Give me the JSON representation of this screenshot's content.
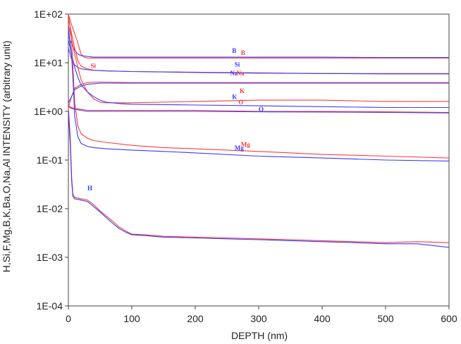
{
  "chart_data": {
    "type": "line",
    "xlabel": "DEPTH (nm)",
    "ylabel": "H,Si,F,Mg,B,K,Ba,O,Na,Al INTENSITY (arbitrary unit)",
    "xlim": [
      0,
      600
    ],
    "ylim": [
      0.0001,
      100
    ],
    "y_scale": "log",
    "grid": false,
    "x_ticks": [
      "0",
      "100",
      "200",
      "300",
      "400",
      "500",
      "600"
    ],
    "y_ticks": [
      "1E+02",
      "1E+01",
      "1E+00",
      "1E-01",
      "1E-02",
      "1E-03",
      "1E-04"
    ],
    "colors": {
      "red": "#ff3b3b",
      "blue": "#3a3aff"
    },
    "labels": [
      {
        "text": "B",
        "color": "blue",
        "x": 258,
        "y": 16
      },
      {
        "text": "B",
        "color": "red",
        "x": 272,
        "y": 14.5
      },
      {
        "text": "Si",
        "color": "red",
        "x": 35,
        "y": 7.8
      },
      {
        "text": "Si",
        "color": "blue",
        "x": 262,
        "y": 8.3
      },
      {
        "text": "Na",
        "color": "blue",
        "x": 255,
        "y": 5.5
      },
      {
        "text": "Na",
        "color": "red",
        "x": 265,
        "y": 5.5
      },
      {
        "text": "K",
        "color": "red",
        "x": 270,
        "y": 2.4
      },
      {
        "text": "K",
        "color": "blue",
        "x": 258,
        "y": 1.8
      },
      {
        "text": "O",
        "color": "red",
        "x": 268,
        "y": 1.4
      },
      {
        "text": "O",
        "color": "blue",
        "x": 300,
        "y": 1.0
      },
      {
        "text": "Mg",
        "color": "red",
        "x": 272,
        "y": 0.19
      },
      {
        "text": "Mg",
        "color": "blue",
        "x": 262,
        "y": 0.16
      },
      {
        "text": "H",
        "color": "blue",
        "x": 30,
        "y": 0.024
      }
    ],
    "series": [
      {
        "color": "red",
        "x": [
          0,
          5,
          10,
          15,
          20,
          25,
          30,
          40,
          60,
          100,
          200,
          300,
          400,
          500,
          600
        ],
        "y": [
          100,
          60,
          40,
          25,
          15,
          13,
          12.5,
          12.5,
          12.5,
          12.5,
          12.5,
          12.5,
          12.5,
          12.5,
          12.5
        ]
      },
      {
        "color": "blue",
        "x": [
          0,
          5,
          10,
          15,
          20,
          30,
          40,
          60,
          100,
          200,
          300,
          400,
          500,
          600
        ],
        "y": [
          35,
          25,
          18,
          15,
          14,
          13.5,
          13,
          13,
          13,
          13,
          13,
          13,
          12.8,
          12.8
        ]
      },
      {
        "color": "red",
        "x": [
          0,
          5,
          10,
          15,
          20,
          30,
          40,
          60,
          100,
          200,
          300,
          400,
          500,
          600
        ],
        "y": [
          80,
          40,
          20,
          11,
          8.5,
          7.5,
          7,
          6.8,
          6.6,
          6.4,
          6.2,
          6.0,
          6.0,
          6.0
        ]
      },
      {
        "color": "blue",
        "x": [
          0,
          5,
          10,
          15,
          20,
          30,
          40,
          60,
          100,
          200,
          300,
          400,
          500,
          600
        ],
        "y": [
          20,
          12,
          9,
          8,
          7.5,
          7.2,
          7,
          6.8,
          6.6,
          6.3,
          6.1,
          6.0,
          5.9,
          5.9
        ]
      },
      {
        "color": "red",
        "x": [
          0,
          5,
          10,
          20,
          30,
          40,
          50,
          60,
          100,
          200,
          300,
          400,
          500,
          600
        ],
        "y": [
          1.2,
          2,
          3,
          3.6,
          3.9,
          4.0,
          4.0,
          4.0,
          3.9,
          3.9,
          3.9,
          3.9,
          3.9,
          3.9
        ]
      },
      {
        "color": "blue",
        "x": [
          0,
          5,
          10,
          20,
          30,
          40,
          50,
          60,
          100,
          200,
          300,
          400,
          500,
          600
        ],
        "y": [
          1.5,
          2,
          2.8,
          3.3,
          3.6,
          3.7,
          3.8,
          3.8,
          3.8,
          3.8,
          3.8,
          3.8,
          3.8,
          3.8
        ]
      },
      {
        "color": "red",
        "x": [
          0,
          5,
          10,
          15,
          20,
          30,
          40,
          50,
          60,
          80,
          100,
          200,
          300,
          400,
          500,
          600
        ],
        "y": [
          60,
          30,
          15,
          8,
          4.5,
          2.5,
          1.8,
          1.55,
          1.5,
          1.5,
          1.5,
          1.6,
          1.7,
          1.7,
          1.6,
          1.6
        ]
      },
      {
        "color": "blue",
        "x": [
          0,
          5,
          10,
          15,
          20,
          30,
          40,
          50,
          60,
          80,
          100,
          200,
          300,
          400,
          500,
          600
        ],
        "y": [
          30,
          15,
          8,
          5,
          3.5,
          2.5,
          2.0,
          1.7,
          1.55,
          1.45,
          1.4,
          1.35,
          1.3,
          1.25,
          1.2,
          1.2
        ]
      },
      {
        "color": "red",
        "x": [
          0,
          5,
          10,
          20,
          30,
          40,
          60,
          100,
          200,
          300,
          400,
          500,
          600
        ],
        "y": [
          1.3,
          1.2,
          1.15,
          1.1,
          1.05,
          1.05,
          1.05,
          1.05,
          1.05,
          1.0,
          1.0,
          0.98,
          0.95
        ]
      },
      {
        "color": "blue",
        "x": [
          0,
          5,
          10,
          20,
          30,
          40,
          60,
          100,
          200,
          300,
          400,
          500,
          600
        ],
        "y": [
          1.25,
          1.15,
          1.1,
          1.05,
          1.0,
          1.0,
          1.0,
          1.0,
          1.0,
          0.98,
          0.97,
          0.95,
          0.93
        ]
      },
      {
        "color": "red",
        "x": [
          0,
          5,
          8,
          10,
          15,
          20,
          30,
          40,
          60,
          100,
          150,
          200,
          300,
          400,
          500,
          600
        ],
        "y": [
          100,
          30,
          5,
          1.5,
          0.5,
          0.35,
          0.28,
          0.25,
          0.23,
          0.2,
          0.18,
          0.17,
          0.15,
          0.13,
          0.12,
          0.11
        ]
      },
      {
        "color": "blue",
        "x": [
          0,
          5,
          8,
          10,
          15,
          20,
          30,
          40,
          60,
          100,
          150,
          200,
          300,
          400,
          500,
          600
        ],
        "y": [
          50,
          15,
          3,
          0.8,
          0.3,
          0.22,
          0.19,
          0.18,
          0.17,
          0.16,
          0.15,
          0.14,
          0.12,
          0.11,
          0.1,
          0.095
        ]
      },
      {
        "color": "red",
        "x": [
          0,
          3,
          5,
          7,
          10,
          20,
          30,
          40,
          50,
          60,
          70,
          80,
          90,
          100,
          120,
          150,
          200,
          250,
          300,
          350,
          400,
          450,
          500,
          550,
          600
        ],
        "y": [
          1.2,
          0.3,
          0.05,
          0.02,
          0.017,
          0.016,
          0.015,
          0.012,
          0.009,
          0.007,
          0.0055,
          0.0042,
          0.0035,
          0.003,
          0.0029,
          0.0027,
          0.0026,
          0.0025,
          0.0024,
          0.0023,
          0.0022,
          0.0021,
          0.002,
          0.0021,
          0.002
        ]
      },
      {
        "color": "blue",
        "x": [
          0,
          3,
          5,
          7,
          10,
          20,
          30,
          40,
          50,
          60,
          70,
          80,
          90,
          100,
          120,
          150,
          200,
          250,
          300,
          350,
          400,
          450,
          500,
          550,
          600
        ],
        "y": [
          1.0,
          0.2,
          0.04,
          0.018,
          0.016,
          0.015,
          0.014,
          0.011,
          0.0085,
          0.0065,
          0.005,
          0.0039,
          0.0033,
          0.0029,
          0.0028,
          0.0026,
          0.0025,
          0.0024,
          0.0023,
          0.0022,
          0.0021,
          0.002,
          0.0019,
          0.0019,
          0.0016
        ]
      }
    ]
  }
}
